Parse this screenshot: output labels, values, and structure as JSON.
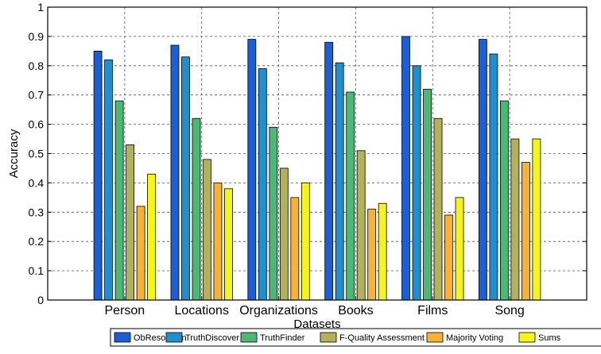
{
  "chart_data": {
    "type": "bar",
    "title": "",
    "xlabel": "Datasets",
    "ylabel": "Accuracy",
    "ylim": [
      0,
      1
    ],
    "yticks": [
      "0",
      "0.1",
      "0.2",
      "0.3",
      "0.4",
      "0.5",
      "0.6",
      "0.7",
      "0.8",
      "0.9",
      "1"
    ],
    "grid": true,
    "legend_position": "bottom",
    "categories": [
      "Person",
      "Locations",
      "Organizations",
      "Books",
      "Films",
      "Song"
    ],
    "series": [
      {
        "name": "ObResolution",
        "color": "#1a5fd6",
        "values": [
          0.85,
          0.87,
          0.89,
          0.88,
          0.9,
          0.89
        ]
      },
      {
        "name": "TruthDiscover",
        "color": "#1f8fd0",
        "values": [
          0.82,
          0.83,
          0.79,
          0.81,
          0.8,
          0.84
        ]
      },
      {
        "name": "TruthFinder",
        "color": "#4cb873",
        "values": [
          0.68,
          0.62,
          0.59,
          0.71,
          0.72,
          0.68
        ]
      },
      {
        "name": "F-Quality Assessment",
        "color": "#b3b25a",
        "values": [
          0.53,
          0.48,
          0.45,
          0.51,
          0.62,
          0.55
        ]
      },
      {
        "name": "Majority Voting",
        "color": "#f9b233",
        "values": [
          0.32,
          0.4,
          0.35,
          0.31,
          0.29,
          0.47
        ]
      },
      {
        "name": "Sums",
        "color": "#f5f516",
        "values": [
          0.43,
          0.38,
          0.4,
          0.33,
          0.35,
          0.55
        ]
      }
    ]
  }
}
